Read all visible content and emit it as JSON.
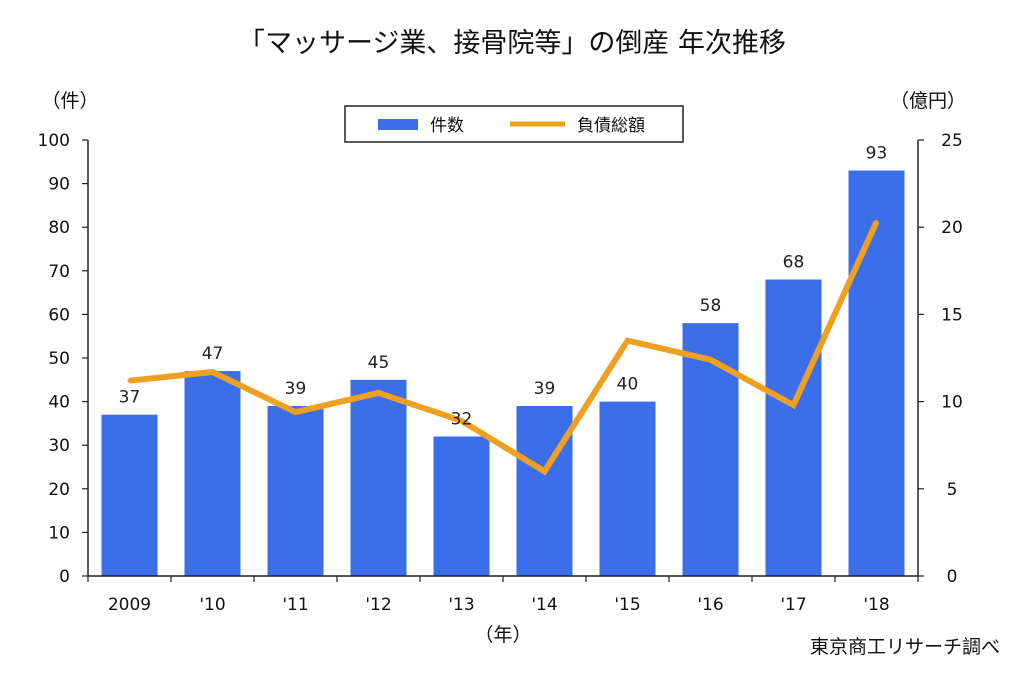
{
  "chart_data": {
    "type": "bar",
    "title": "「マッサージ業、接骨院等」の倒産 年次推移",
    "categories": [
      "2009",
      "'10",
      "'11",
      "'12",
      "'13",
      "'14",
      "'15",
      "'16",
      "'17",
      "'18"
    ],
    "xlabel": "（年）",
    "ylabel_left": "（件）",
    "ylabel_right": "（億円）",
    "ylim_left": [
      0,
      100
    ],
    "ylim_right": [
      0,
      25
    ],
    "yticks_left": [
      0,
      10,
      20,
      30,
      40,
      50,
      60,
      70,
      80,
      90,
      100
    ],
    "yticks_right": [
      0,
      5,
      10,
      15,
      20,
      25
    ],
    "grid": false,
    "legend_position": "top-center",
    "series": [
      {
        "name": "件数",
        "type": "bar",
        "axis": "left",
        "color": "#3b6ee8",
        "values": [
          37,
          47,
          39,
          45,
          32,
          39,
          40,
          58,
          68,
          93
        ]
      },
      {
        "name": "負債総額",
        "type": "line",
        "axis": "right",
        "color": "#f0a020",
        "values": [
          11.2,
          11.7,
          9.4,
          10.5,
          8.9,
          6.0,
          13.5,
          12.4,
          9.8,
          20.3
        ]
      }
    ],
    "source": "東京商工リサーチ調べ"
  }
}
